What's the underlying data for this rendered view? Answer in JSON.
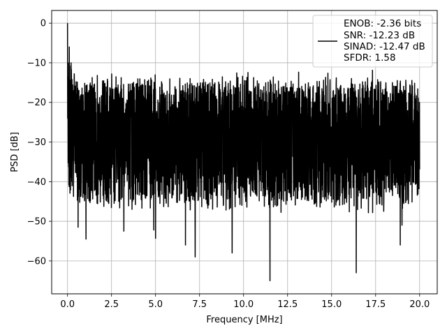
{
  "chart_data": {
    "type": "line",
    "title": "",
    "xlabel": "Frequency [MHz]",
    "ylabel": "PSD [dB]",
    "xlim": [
      -0.9,
      21.0
    ],
    "ylim": [
      -68.3,
      3.2
    ],
    "x_ticks": [
      0.0,
      2.5,
      5.0,
      7.5,
      10.0,
      12.5,
      15.0,
      17.5,
      20.0
    ],
    "x_tick_labels": [
      "0.0",
      "2.5",
      "5.0",
      "7.5",
      "10.0",
      "12.5",
      "15.0",
      "17.5",
      "20.0"
    ],
    "y_ticks": [
      0,
      -10,
      -20,
      -30,
      -40,
      -50,
      -60
    ],
    "y_tick_labels": [
      "0",
      "−10",
      "−20",
      "−30",
      "−40",
      "−50",
      "−60"
    ],
    "grid": true,
    "legend": {
      "placement": "upper-right",
      "entries": [
        "ENOB: -2.36 bits",
        "SNR: -12.23 dB",
        "SINAD: -12.47 dB",
        "SFDR: 1.58"
      ]
    },
    "series": [
      {
        "color": "#000000",
        "x_range": [
          0.0,
          20.0
        ],
        "dc_peak_db": 0.0,
        "floor_mean_db": -29.0,
        "floor_top_db": -18.0,
        "floor_bottom_db": -42.0,
        "notable_peaks": [
          {
            "x": 0.0,
            "y": 0.0
          },
          {
            "x": 0.1,
            "y": -6.0
          },
          {
            "x": 0.2,
            "y": -10.0
          },
          {
            "x": 10.05,
            "y": -14.5
          },
          {
            "x": 12.3,
            "y": -16.0
          }
        ],
        "notable_dips": [
          {
            "x": 0.6,
            "y": -51.5
          },
          {
            "x": 1.05,
            "y": -54.5
          },
          {
            "x": 3.2,
            "y": -52.5
          },
          {
            "x": 4.9,
            "y": -52.2
          },
          {
            "x": 5.0,
            "y": -54.3
          },
          {
            "x": 6.7,
            "y": -56.0
          },
          {
            "x": 7.25,
            "y": -59.0
          },
          {
            "x": 9.35,
            "y": -58.0
          },
          {
            "x": 11.5,
            "y": -65.0
          },
          {
            "x": 16.4,
            "y": -63.0
          },
          {
            "x": 18.9,
            "y": -56.0
          },
          {
            "x": 19.0,
            "y": -51.0
          }
        ]
      }
    ]
  }
}
